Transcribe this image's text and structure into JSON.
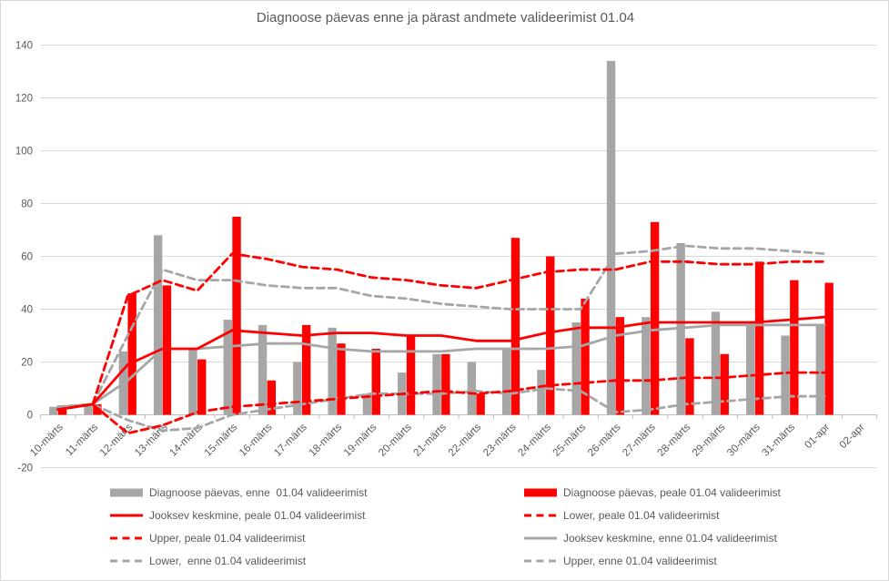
{
  "chart_data": {
    "type": "combo-bar-line",
    "title": "Diagnoose päevas enne ja pärast andmete valideerimist 01.04",
    "categories": [
      "10-märts",
      "11-märts",
      "12-märts",
      "13-märts",
      "14-märts",
      "15-märts",
      "16-märts",
      "17-märts",
      "18-märts",
      "19-märts",
      "20-märts",
      "21-märts",
      "22-märts",
      "23-märts",
      "24-märts",
      "25-märts",
      "26-märts",
      "27-märts",
      "28-märts",
      "29-märts",
      "30-märts",
      "31-märts",
      "01-apr",
      "02-apr"
    ],
    "y_axis": {
      "min": -20,
      "max": 140,
      "step": 20,
      "ticks": [
        140,
        120,
        100,
        80,
        60,
        40,
        20,
        0,
        -20
      ]
    },
    "x_axis": {
      "label_rotation_deg": -45
    },
    "grid": "horizontal",
    "legend_position": "bottom",
    "legend_columns": 2,
    "colors": {
      "bar_enne": "#A6A6A6",
      "bar_peale": "#FF0000",
      "line_enne": "#A6A6A6",
      "line_peale": "#FF0000",
      "text": "#595959",
      "gridline": "#D9D9D9",
      "axis": "#BFBFBF",
      "border": "#D9D9D9"
    },
    "series": [
      {
        "id": "diagnoose-enne",
        "name": "Diagnoose päevas, enne  01.04 valideerimist",
        "type": "bar",
        "color": "#A6A6A6",
        "z": 0,
        "values": [
          3,
          4,
          24,
          68,
          25,
          36,
          34,
          20,
          33,
          8,
          16,
          23,
          20,
          25,
          17,
          35,
          134,
          37,
          65,
          39,
          35,
          30,
          34,
          null
        ]
      },
      {
        "id": "diagnoose-peale",
        "name": "Diagnoose päevas, peale 01.04 valideerimist",
        "type": "bar",
        "color": "#FF0000",
        "z": 0,
        "values": [
          2,
          4,
          46,
          49,
          21,
          75,
          13,
          34,
          27,
          25,
          30,
          23,
          8,
          67,
          60,
          44,
          37,
          73,
          29,
          23,
          58,
          51,
          50,
          null
        ]
      },
      {
        "id": "keskmine-peale",
        "name": "Jooksev keskmine, peale 01.04 valideerimist",
        "type": "line",
        "line_style": "solid",
        "color": "#FF0000",
        "z": 6,
        "values": [
          2,
          4,
          19,
          25,
          25,
          32,
          31,
          30,
          31,
          31,
          30,
          30,
          28,
          28,
          31,
          33,
          33,
          35,
          35,
          35,
          35,
          36,
          37,
          null
        ]
      },
      {
        "id": "lower-peale",
        "name": "Lower, peale 01.04 valideerimist",
        "type": "line",
        "line_style": "dashed",
        "color": "#FF0000",
        "z": 4,
        "values": [
          2,
          4,
          -7,
          -4,
          1,
          3,
          4,
          5,
          6,
          7,
          8,
          9,
          8,
          9,
          11,
          12,
          13,
          13,
          14,
          14,
          15,
          16,
          16,
          null
        ]
      },
      {
        "id": "upper-peale",
        "name": "Upper, peale 01.04 valideerimist",
        "type": "line",
        "line_style": "dashed",
        "color": "#FF0000",
        "z": 5,
        "values": [
          2,
          4,
          45,
          51,
          47,
          61,
          59,
          56,
          55,
          52,
          51,
          49,
          48,
          51,
          54,
          55,
          55,
          58,
          58,
          57,
          57,
          58,
          58,
          null
        ]
      },
      {
        "id": "keskmine-enne",
        "name": "Jooksev keskmine, enne 01.04 valideerimist",
        "type": "line",
        "line_style": "solid",
        "color": "#A6A6A6",
        "z": 3,
        "values": [
          3,
          4,
          13,
          25,
          25,
          26,
          27,
          27,
          25,
          24,
          24,
          24,
          25,
          25,
          25,
          26,
          30,
          32,
          33,
          34,
          34,
          34,
          34,
          null
        ]
      },
      {
        "id": "lower-enne",
        "name": "Lower,  enne 01.04 valideerimist",
        "type": "line",
        "line_style": "dashed",
        "color": "#A6A6A6",
        "z": 1,
        "values": [
          3,
          4,
          -2,
          -6,
          -5,
          0,
          2,
          4,
          6,
          8,
          8,
          8,
          9,
          8,
          10,
          9,
          1,
          2,
          4,
          5,
          6,
          7,
          7,
          null
        ]
      },
      {
        "id": "upper-enne",
        "name": "Upper, enne 01.04 valideerimist",
        "type": "line",
        "line_style": "dashed",
        "color": "#A6A6A6",
        "z": 2,
        "values": [
          3,
          4,
          30,
          55,
          51,
          51,
          49,
          48,
          48,
          45,
          44,
          42,
          41,
          40,
          40,
          40,
          61,
          62,
          64,
          63,
          63,
          62,
          61,
          null
        ]
      }
    ]
  }
}
